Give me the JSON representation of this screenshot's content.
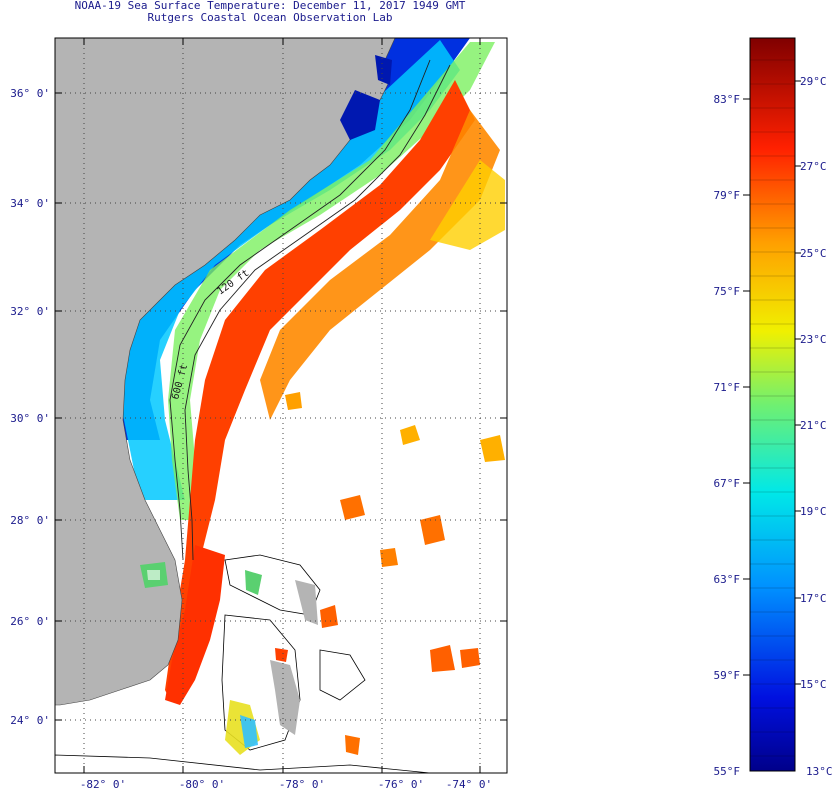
{
  "map": {
    "title_line1": "NOAA-19 Sea Surface Temperature:  December 11, 2017 1949 GMT",
    "title_line2": "Rutgers Coastal Ocean Observation Lab",
    "lat_labels": [
      "36° 0'",
      "34° 0'",
      "32° 0'",
      "30° 0'",
      "28° 0'",
      "26° 0'",
      "24° 0'"
    ],
    "lon_labels": [
      "-82° 0'",
      "-80° 0'",
      "-78° 0'",
      "-76° 0'",
      "-74° 0'"
    ],
    "isobath_labels": [
      "120 ft",
      "600 ft"
    ],
    "colors": {
      "land": "#b4b4b4",
      "cold": "#0010c0",
      "warm": "#ff2a00"
    }
  },
  "colorbar": {
    "fahrenheit_labels": [
      "83°F",
      "79°F",
      "75°F",
      "71°F",
      "67°F",
      "63°F",
      "59°F"
    ],
    "celsius_labels": [
      "29°C",
      "27°C",
      "25°C",
      "23°C",
      "21°C",
      "19°C",
      "17°C",
      "15°C"
    ],
    "min_f_label": "55°F",
    "min_c_label": "13°C"
  }
}
